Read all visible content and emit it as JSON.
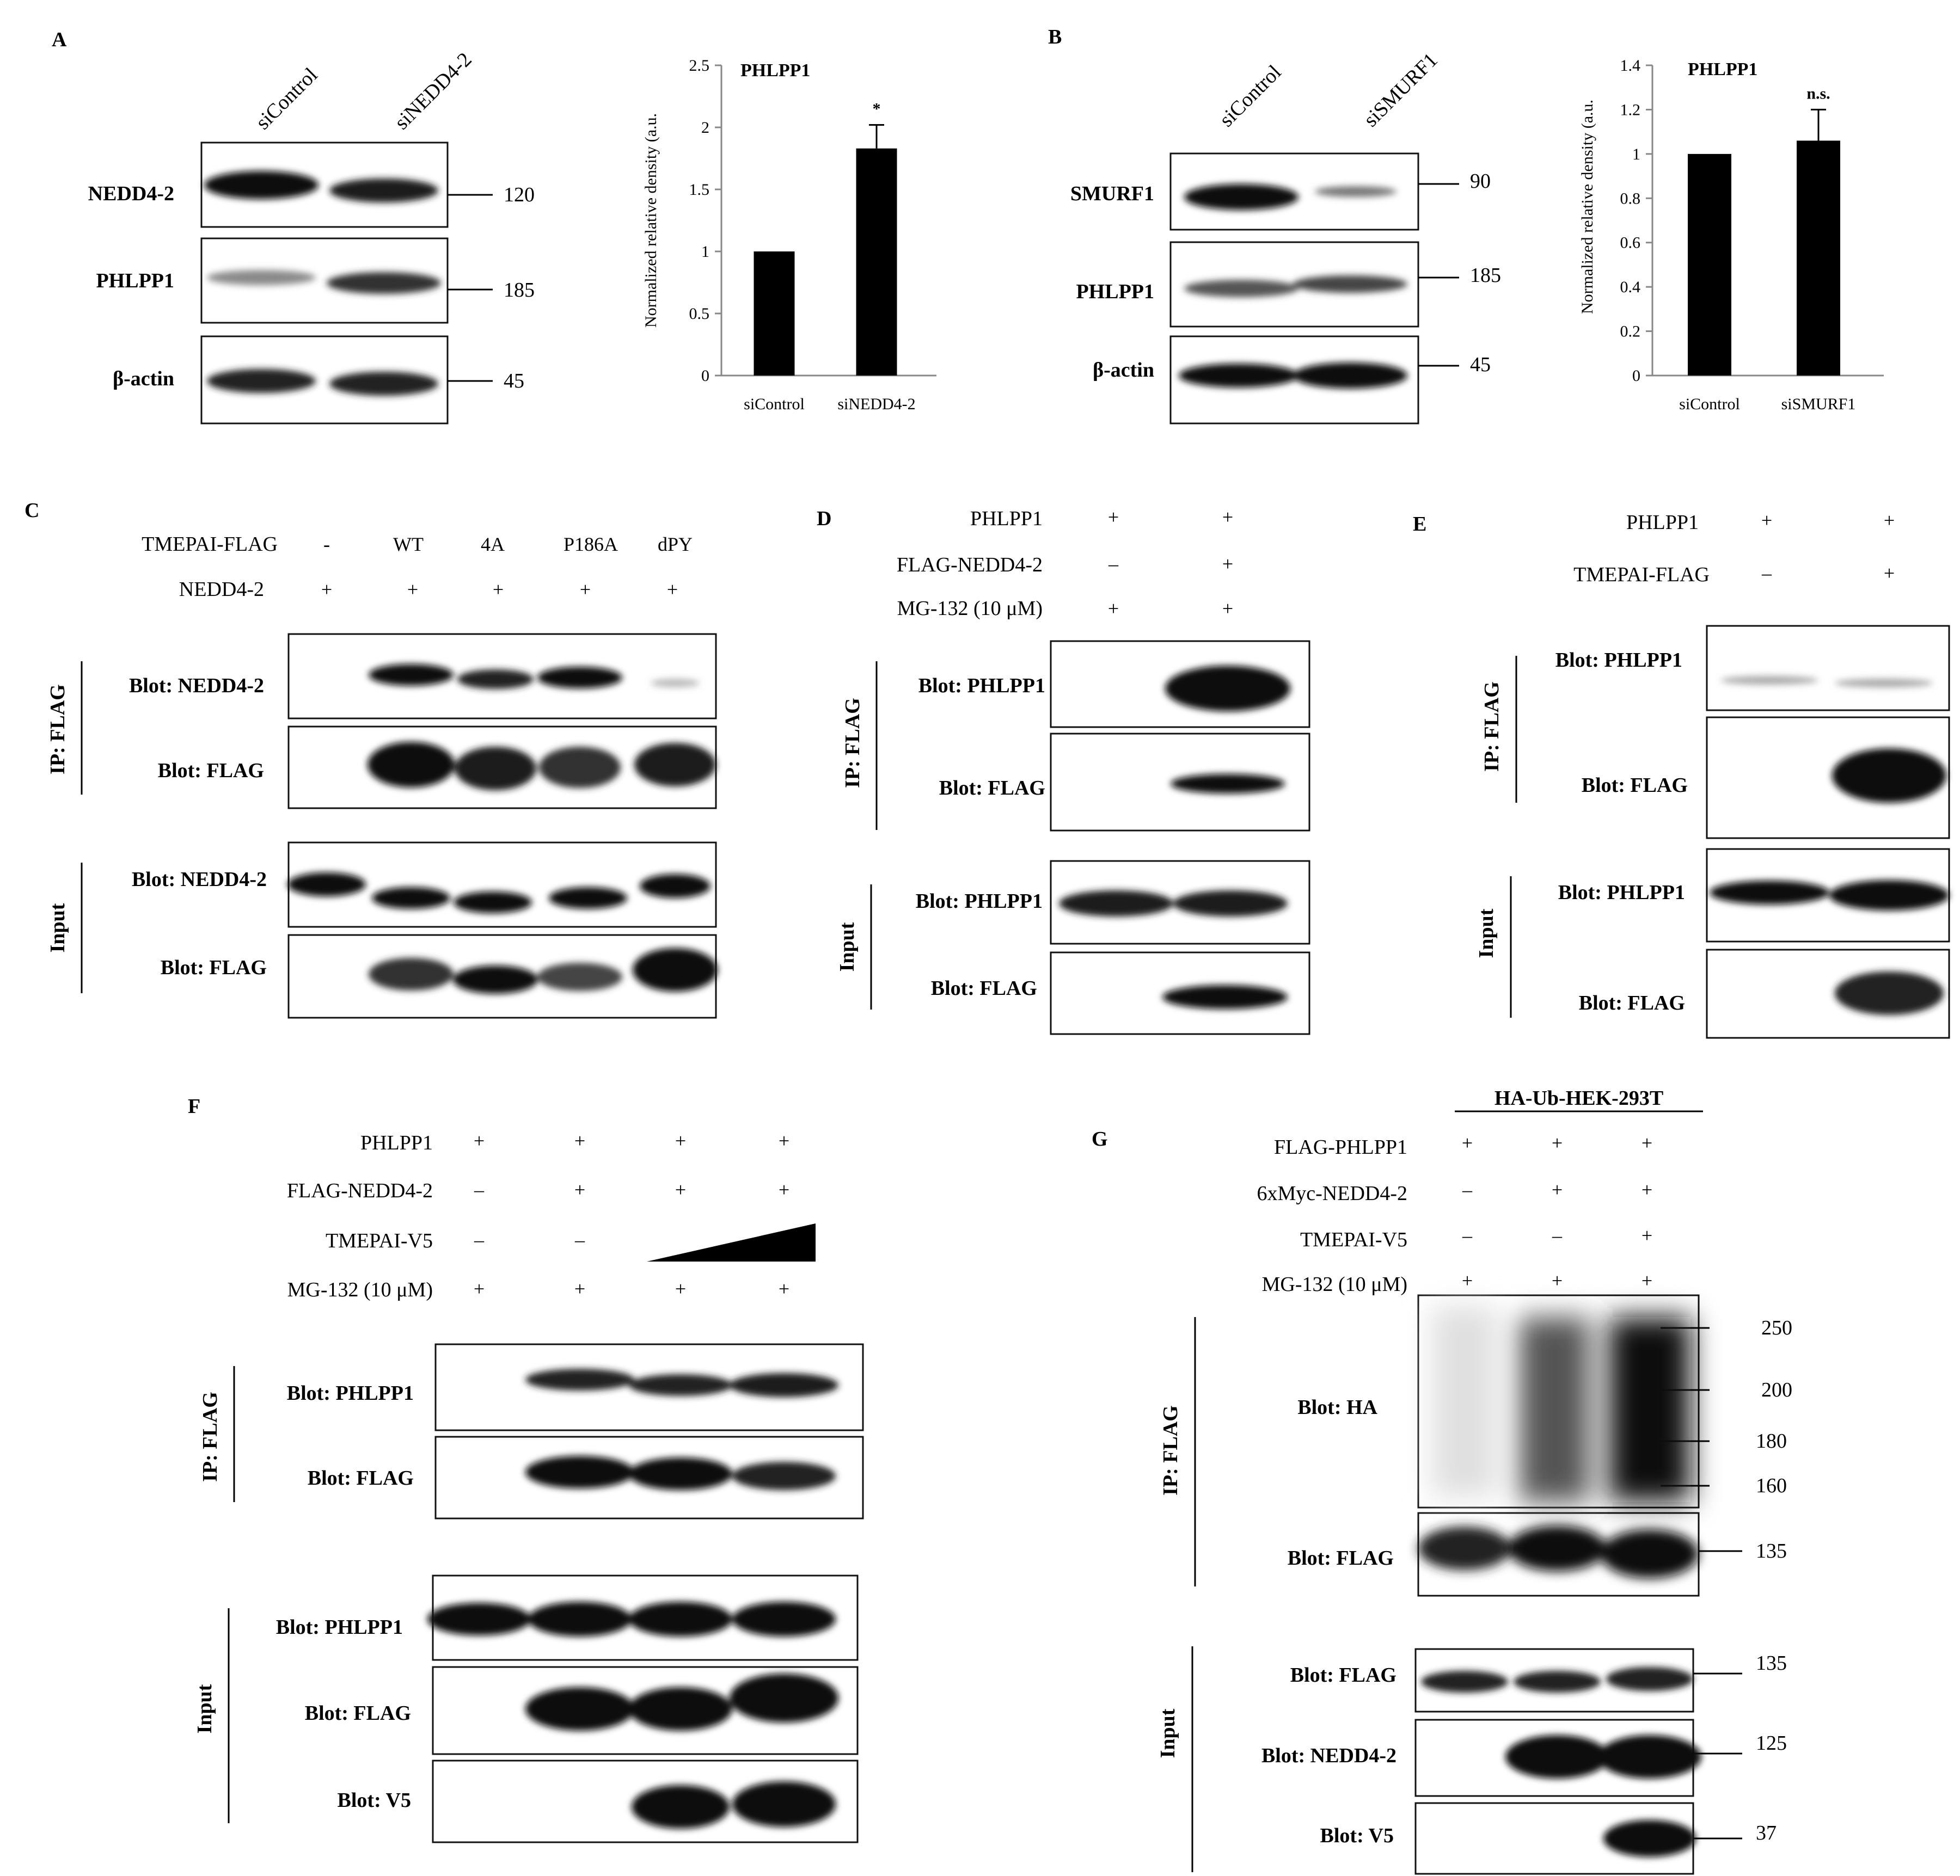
{
  "panels": {
    "A": {
      "letter": "A",
      "lanes": [
        "siControl",
        "siNEDD4-2"
      ],
      "blots": [
        {
          "label": "NEDD4-2",
          "mw": "120"
        },
        {
          "label": "PHLPP1",
          "mw": "185"
        },
        {
          "label": "β-actin",
          "mw": "45"
        }
      ]
    },
    "B": {
      "letter": "B",
      "lanes": [
        "siControl",
        "siSMURF1"
      ],
      "blots": [
        {
          "label": "SMURF1",
          "mw": "90"
        },
        {
          "label": "PHLPP1",
          "mw": "185"
        },
        {
          "label": "β-actin",
          "mw": "45"
        }
      ]
    },
    "C": {
      "letter": "C",
      "row1_label": "TMEPAI-FLAG",
      "row1_values": [
        "-",
        "WT",
        "4A",
        "P186A",
        "dPY"
      ],
      "row2_label": "NEDD4-2",
      "row2_values": [
        "+",
        "+",
        "+",
        "+",
        "+"
      ],
      "ip_label": "IP: FLAG",
      "input_label": "Input",
      "blots": [
        "Blot: NEDD4-2",
        "Blot: FLAG",
        "Blot: NEDD4-2",
        "Blot: FLAG"
      ]
    },
    "D": {
      "letter": "D",
      "rows": [
        {
          "label": "PHLPP1",
          "values": [
            "+",
            "+"
          ]
        },
        {
          "label": "FLAG-NEDD4-2",
          "values": [
            "–",
            "+"
          ]
        },
        {
          "label": "MG-132 (10 μM)",
          "values": [
            "+",
            "+"
          ]
        }
      ],
      "ip_label": "IP: FLAG",
      "input_label": "Input",
      "blots": [
        "Blot: PHLPP1",
        "Blot: FLAG",
        "Blot: PHLPP1",
        "Blot: FLAG"
      ]
    },
    "E": {
      "letter": "E",
      "rows": [
        {
          "label": "PHLPP1",
          "values": [
            "+",
            "+"
          ]
        },
        {
          "label": "TMEPAI-FLAG",
          "values": [
            "–",
            "+"
          ]
        }
      ],
      "ip_label": "IP: FLAG",
      "input_label": "Input",
      "blots": [
        "Blot: PHLPP1",
        "Blot: FLAG",
        "Blot: PHLPP1",
        "Blot: FLAG"
      ]
    },
    "F": {
      "letter": "F",
      "rows": [
        {
          "label": "PHLPP1",
          "values": [
            "+",
            "+",
            "+",
            "+"
          ]
        },
        {
          "label": "FLAG-NEDD4-2",
          "values": [
            "–",
            "+",
            "+",
            "+"
          ]
        },
        {
          "label": "TMEPAI-V5",
          "values": [
            "–",
            "–",
            "",
            ""
          ]
        },
        {
          "label": "MG-132 (10 μM)",
          "values": [
            "+",
            "+",
            "+",
            "+"
          ]
        }
      ],
      "ip_label": "IP: FLAG",
      "input_label": "Input",
      "blots": [
        "Blot: PHLPP1",
        "Blot: FLAG",
        "Blot: PHLPP1",
        "Blot: FLAG",
        "Blot: V5"
      ]
    },
    "G": {
      "letter": "G",
      "header": "HA-Ub-HEK-293T",
      "rows": [
        {
          "label": "FLAG-PHLPP1",
          "values": [
            "+",
            "+",
            "+"
          ]
        },
        {
          "label": "6xMyc-NEDD4-2",
          "values": [
            "–",
            "+",
            "+"
          ]
        },
        {
          "label": "TMEPAI-V5",
          "values": [
            "–",
            "–",
            "+"
          ]
        },
        {
          "label": "MG-132 (10 μM)",
          "values": [
            "+",
            "+",
            "+"
          ]
        }
      ],
      "ip_label": "IP: FLAG",
      "input_label": "Input",
      "blots": [
        "Blot: HA",
        "Blot: FLAG",
        "Blot: FLAG",
        "Blot: NEDD4-2",
        "Blot: V5"
      ],
      "ha_markers": [
        "250",
        "200",
        "180",
        "160"
      ],
      "mw": [
        "135",
        "135",
        "125",
        "37"
      ]
    }
  },
  "chart_data": [
    {
      "type": "bar",
      "panel": "A",
      "title": "PHLPP1",
      "ylabel": "Normalized relative density (a.u.",
      "categories": [
        "siControl",
        "siNEDD4-2"
      ],
      "values": [
        1.0,
        1.83
      ],
      "errors": [
        0,
        0.19
      ],
      "annotations": [
        "",
        "*"
      ],
      "ylim": [
        0,
        2.5
      ],
      "yticks": [
        "0",
        "0.5",
        "1",
        "1.5",
        "2",
        "2.5"
      ],
      "tick_values": [
        0,
        0.5,
        1,
        1.5,
        2,
        2.5
      ]
    },
    {
      "type": "bar",
      "panel": "B",
      "title": "PHLPP1",
      "ylabel": "Normalized relative density (a.u.",
      "categories": [
        "siControl",
        "siSMURF1"
      ],
      "values": [
        1.0,
        1.06
      ],
      "errors": [
        0,
        0.14
      ],
      "annotations": [
        "",
        "n.s."
      ],
      "ylim": [
        0,
        1.4
      ],
      "yticks": [
        "0",
        "0.2",
        "0.4",
        "0.6",
        "0.8",
        "1",
        "1.2",
        "1.4"
      ],
      "tick_values": [
        0,
        0.2,
        0.4,
        0.6,
        0.8,
        1,
        1.2,
        1.4
      ]
    }
  ]
}
